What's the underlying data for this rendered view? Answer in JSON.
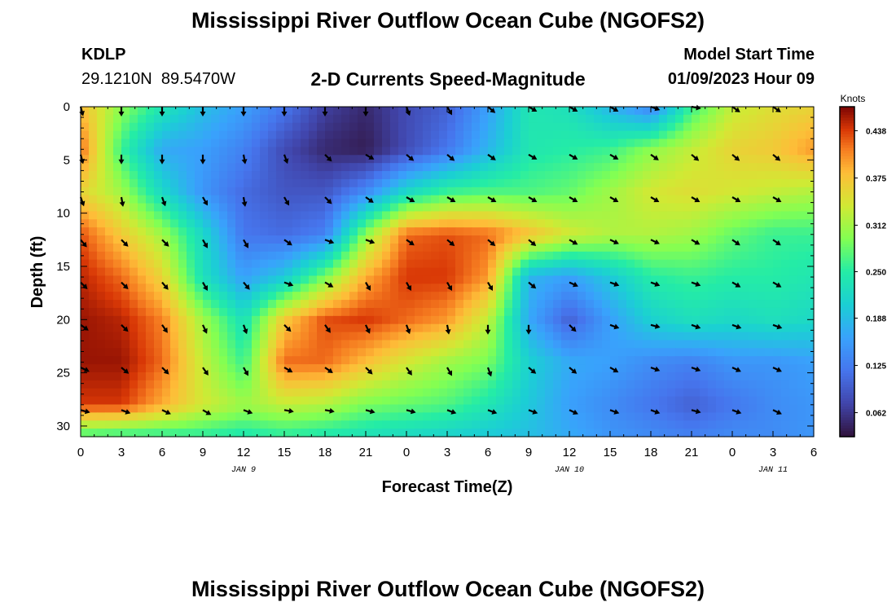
{
  "title": "Mississippi River Outflow Ocean Cube (NGOFS2)",
  "bottom_title": "Mississippi River Outflow Ocean Cube (NGOFS2)",
  "station": {
    "id": "KDLP",
    "coords": "29.1210N  89.5470W"
  },
  "subtitle": "2-D Currents Speed-Magnitude",
  "model_start": {
    "label": "Model Start Time",
    "value": "01/09/2023 Hour 09"
  },
  "chart_data": {
    "type": "heatmap",
    "title": "2-D Currents Speed-Magnitude",
    "xlabel": "Forecast Time(Z)",
    "ylabel": "Depth (ft)",
    "x_tick_labels": [
      "0",
      "3",
      "6",
      "9",
      "12",
      "15",
      "18",
      "21",
      "0",
      "3",
      "6",
      "9",
      "12",
      "15",
      "18",
      "21",
      "0",
      "3",
      "6"
    ],
    "x_ticks_hours": [
      0,
      3,
      6,
      9,
      12,
      15,
      18,
      21,
      24,
      27,
      30,
      33,
      36,
      39,
      42,
      45,
      48,
      51,
      54
    ],
    "date_labels": [
      {
        "hour": 12,
        "text": "JAN 9"
      },
      {
        "hour": 36,
        "text": "JAN 10"
      },
      {
        "hour": 51,
        "text": "JAN 11"
      }
    ],
    "xlim": [
      0,
      54
    ],
    "y_ticks": [
      0,
      5,
      10,
      15,
      20,
      25,
      30
    ],
    "ylim": [
      0,
      31
    ],
    "y_inverted": true,
    "colorbar": {
      "unit": "Knots",
      "tick_values": [
        0.062,
        0.125,
        0.188,
        0.25,
        0.312,
        0.375,
        0.438
      ],
      "tick_labels": [
        "0.062",
        "0.125",
        "0.188",
        "0.250",
        "0.312",
        "0.375",
        "0.438"
      ],
      "range": [
        0.03,
        0.47
      ],
      "colormap": "turbo"
    },
    "columns_hours": [
      0,
      3,
      6,
      9,
      12,
      15,
      18,
      21,
      24,
      27,
      30,
      33,
      36,
      39,
      42,
      45,
      48,
      51,
      54
    ],
    "rows_depth_ft": [
      0,
      4,
      8,
      12,
      16,
      20,
      24,
      28,
      31
    ],
    "speed_knots": [
      [
        0.38,
        0.3,
        0.24,
        0.19,
        0.16,
        0.12,
        0.07,
        0.05,
        0.08,
        0.1,
        0.16,
        0.24,
        0.23,
        0.18,
        0.13,
        0.26,
        0.33,
        0.35,
        0.36
      ],
      [
        0.42,
        0.26,
        0.17,
        0.16,
        0.13,
        0.08,
        0.05,
        0.04,
        0.08,
        0.12,
        0.18,
        0.24,
        0.25,
        0.26,
        0.3,
        0.33,
        0.36,
        0.37,
        0.4
      ],
      [
        0.36,
        0.31,
        0.22,
        0.15,
        0.11,
        0.09,
        0.09,
        0.14,
        0.22,
        0.26,
        0.27,
        0.27,
        0.28,
        0.31,
        0.34,
        0.35,
        0.34,
        0.33,
        0.32
      ],
      [
        0.43,
        0.37,
        0.31,
        0.22,
        0.12,
        0.11,
        0.13,
        0.3,
        0.42,
        0.43,
        0.42,
        0.38,
        0.34,
        0.32,
        0.32,
        0.31,
        0.28,
        0.26,
        0.26
      ],
      [
        0.45,
        0.42,
        0.36,
        0.23,
        0.16,
        0.2,
        0.29,
        0.39,
        0.44,
        0.44,
        0.4,
        0.18,
        0.16,
        0.2,
        0.25,
        0.26,
        0.25,
        0.25,
        0.24
      ],
      [
        0.46,
        0.45,
        0.41,
        0.31,
        0.23,
        0.37,
        0.43,
        0.44,
        0.42,
        0.4,
        0.33,
        0.17,
        0.1,
        0.16,
        0.21,
        0.23,
        0.22,
        0.23,
        0.22
      ],
      [
        0.46,
        0.46,
        0.42,
        0.33,
        0.26,
        0.42,
        0.42,
        0.38,
        0.34,
        0.31,
        0.29,
        0.21,
        0.17,
        0.16,
        0.14,
        0.13,
        0.15,
        0.15,
        0.16
      ],
      [
        0.44,
        0.44,
        0.39,
        0.34,
        0.31,
        0.33,
        0.32,
        0.29,
        0.28,
        0.27,
        0.24,
        0.2,
        0.16,
        0.14,
        0.12,
        0.1,
        0.12,
        0.14,
        0.15
      ],
      [
        0.26,
        0.25,
        0.25,
        0.25,
        0.24,
        0.25,
        0.24,
        0.23,
        0.22,
        0.21,
        0.2,
        0.19,
        0.17,
        0.15,
        0.14,
        0.13,
        0.14,
        0.14,
        0.15
      ]
    ],
    "arrow_columns_hours": [
      0,
      3,
      6,
      9,
      12,
      15,
      18,
      21,
      24,
      27,
      30,
      33,
      36,
      39,
      42,
      45,
      48,
      51
    ],
    "arrow_rows_depth_ft": [
      0,
      4.5,
      8.5,
      12.5,
      16.5,
      20.5,
      24.5,
      28.5
    ],
    "arrow_angles_deg": [
      [
        75,
        90,
        90,
        90,
        90,
        90,
        90,
        90,
        70,
        60,
        40,
        30,
        30,
        30,
        20,
        10,
        35,
        35
      ],
      [
        75,
        90,
        90,
        90,
        80,
        70,
        45,
        30,
        40,
        40,
        35,
        30,
        30,
        30,
        35,
        40,
        40,
        40
      ],
      [
        70,
        80,
        70,
        60,
        80,
        60,
        45,
        35,
        30,
        30,
        30,
        30,
        30,
        30,
        30,
        30,
        30,
        30
      ],
      [
        50,
        45,
        45,
        60,
        60,
        35,
        20,
        20,
        35,
        40,
        40,
        40,
        30,
        25,
        25,
        30,
        35,
        35
      ],
      [
        45,
        45,
        50,
        60,
        50,
        20,
        30,
        60,
        60,
        60,
        60,
        40,
        25,
        20,
        20,
        20,
        30,
        30
      ],
      [
        35,
        45,
        55,
        65,
        70,
        45,
        55,
        65,
        70,
        80,
        90,
        90,
        45,
        20,
        15,
        20,
        20,
        20
      ],
      [
        25,
        40,
        45,
        55,
        60,
        30,
        35,
        45,
        55,
        60,
        70,
        40,
        40,
        30,
        20,
        20,
        25,
        25
      ],
      [
        15,
        20,
        25,
        30,
        20,
        10,
        10,
        15,
        15,
        20,
        20,
        20,
        25,
        20,
        20,
        15,
        20,
        25
      ]
    ],
    "grid": false
  }
}
